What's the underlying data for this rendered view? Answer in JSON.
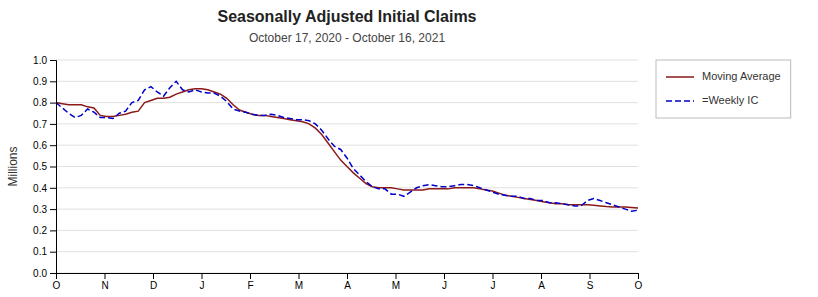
{
  "chart_data": {
    "type": "line",
    "title": "Seasonally Adjusted Initial Claims",
    "subtitle": "October 17, 2020 - October 16, 2021",
    "y_label": "Millions",
    "xlim": [
      0,
      12
    ],
    "xticks": [
      {
        "value": 0,
        "label": "O"
      },
      {
        "value": 1,
        "label": "N"
      },
      {
        "value": 2,
        "label": "D"
      },
      {
        "value": 3,
        "label": "J"
      },
      {
        "value": 4,
        "label": "F"
      },
      {
        "value": 5,
        "label": "M"
      },
      {
        "value": 6,
        "label": "A"
      },
      {
        "value": 7,
        "label": "M"
      },
      {
        "value": 8,
        "label": "J"
      },
      {
        "value": 9,
        "label": "J"
      },
      {
        "value": 10,
        "label": "A"
      },
      {
        "value": 11,
        "label": "S"
      },
      {
        "value": 12,
        "label": "O"
      }
    ],
    "ylim": [
      0.0,
      1.0
    ],
    "yticks": [
      {
        "value": 0.0,
        "label": "0.0"
      },
      0.1,
      0.2,
      0.3,
      0.4,
      0.5,
      0.6,
      0.7,
      0.8,
      0.9,
      {
        "value": 1.0,
        "label": "1.0"
      }
    ],
    "grid": true,
    "legend": "right",
    "series": [
      {
        "name": "Moving Average",
        "color": "#8B1A1A",
        "line_style": "solid",
        "values": [
          0.8,
          0.795,
          0.79,
          0.79,
          0.79,
          0.78,
          0.775,
          0.74,
          0.735,
          0.735,
          0.74,
          0.745,
          0.755,
          0.76,
          0.8,
          0.81,
          0.82,
          0.82,
          0.825,
          0.84,
          0.85,
          0.86,
          0.865,
          0.865,
          0.86,
          0.85,
          0.84,
          0.82,
          0.79,
          0.765,
          0.755,
          0.745,
          0.74,
          0.74,
          0.735,
          0.73,
          0.725,
          0.72,
          0.715,
          0.71,
          0.7,
          0.68,
          0.65,
          0.61,
          0.57,
          0.53,
          0.5,
          0.47,
          0.445,
          0.42,
          0.405,
          0.4,
          0.4,
          0.4,
          0.395,
          0.39,
          0.39,
          0.39,
          0.39,
          0.395,
          0.395,
          0.395,
          0.395,
          0.4,
          0.4,
          0.4,
          0.4,
          0.395,
          0.39,
          0.385,
          0.375,
          0.365,
          0.36,
          0.355,
          0.35,
          0.345,
          0.34,
          0.335,
          0.33,
          0.325,
          0.325,
          0.32,
          0.32,
          0.32,
          0.32,
          0.318,
          0.315,
          0.312,
          0.31,
          0.31,
          0.31,
          0.308,
          0.305
        ]
      },
      {
        "name": "=Weekly IC",
        "color": "#0000CC",
        "line_style": "dashed",
        "values": [
          0.8,
          0.775,
          0.75,
          0.73,
          0.74,
          0.77,
          0.755,
          0.73,
          0.73,
          0.725,
          0.75,
          0.76,
          0.8,
          0.81,
          0.86,
          0.875,
          0.85,
          0.83,
          0.87,
          0.9,
          0.86,
          0.85,
          0.86,
          0.85,
          0.845,
          0.845,
          0.83,
          0.805,
          0.77,
          0.76,
          0.755,
          0.745,
          0.74,
          0.74,
          0.745,
          0.74,
          0.73,
          0.725,
          0.72,
          0.72,
          0.715,
          0.7,
          0.67,
          0.63,
          0.595,
          0.58,
          0.54,
          0.49,
          0.46,
          0.43,
          0.405,
          0.395,
          0.395,
          0.37,
          0.37,
          0.36,
          0.38,
          0.4,
          0.41,
          0.415,
          0.41,
          0.405,
          0.405,
          0.41,
          0.415,
          0.415,
          0.41,
          0.4,
          0.39,
          0.38,
          0.37,
          0.365,
          0.36,
          0.36,
          0.35,
          0.35,
          0.34,
          0.34,
          0.33,
          0.33,
          0.325,
          0.32,
          0.315,
          0.315,
          0.34,
          0.35,
          0.34,
          0.33,
          0.32,
          0.31,
          0.3,
          0.29,
          0.295
        ]
      }
    ]
  }
}
